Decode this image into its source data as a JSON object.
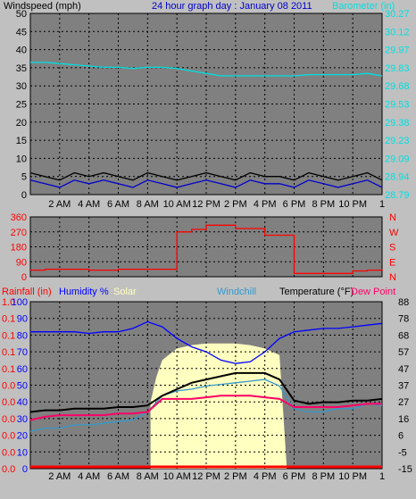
{
  "header": {
    "left_label": "Windspeed (mph)",
    "title": "24 hour graph day : January 08 2011",
    "right_label": "Barometer (in)"
  },
  "colors": {
    "background": "#c0c0c0",
    "plot_bg": "#808080",
    "grid": "#000000",
    "wind": "#0000cc",
    "gust": "#000000",
    "barometer": "#00e0e0",
    "direction": "#ff0000",
    "humidity": "#0000ff",
    "temperature": "#000000",
    "dewpoint": "#ff0066",
    "windchill": "#3399cc",
    "solar": "#ffffc0",
    "rain": "#ff0000",
    "left_axis_text": "#000000",
    "baro_axis_text": "#00e0e0",
    "dir_axis_text": "#ff0000",
    "rain_axis_text": "#ff0000",
    "hum_axis_text": "#0000ff"
  },
  "bottom_legend": {
    "rainfall": "Rainfall (in)",
    "humidity": "Humidity %",
    "solar": "Solar",
    "windchill": "Windchill",
    "temperature": "Temperature (°F)",
    "dewpoint": "Dew Point"
  },
  "chart_data": [
    {
      "type": "line",
      "name": "wind",
      "x_ticks": [
        "2 AM",
        "4 AM",
        "6 AM",
        "8 AM",
        "10 AM",
        "12 PM",
        "2 PM",
        "4 PM",
        "6 PM",
        "8 PM",
        "10 PM",
        "1"
      ],
      "x_tick_hours": [
        2,
        4,
        6,
        8,
        10,
        12,
        14,
        16,
        18,
        20,
        22,
        24
      ],
      "x_range_hours": [
        0,
        24
      ],
      "left_axis": {
        "label": "Windspeed (mph)",
        "ticks": [
          "50",
          "45",
          "40",
          "35",
          "30",
          "25",
          "20",
          "15",
          "10",
          "5",
          "0"
        ],
        "ylim": [
          0,
          50
        ]
      },
      "right_axis": {
        "label": "Barometer (in)",
        "ticks": [
          "30.27",
          "30.12",
          "29.97",
          "29.83",
          "29.68",
          "29.53",
          "29.38",
          "29.23",
          "29.09",
          "28.94",
          "28.79"
        ],
        "ylim": [
          28.79,
          30.27
        ]
      },
      "series": [
        {
          "key": "gust",
          "color": "#000000",
          "axis": "left",
          "x": [
            0,
            1,
            2,
            3,
            4,
            5,
            6,
            7,
            8,
            9,
            10,
            11,
            12,
            13,
            14,
            15,
            16,
            17,
            18,
            19,
            20,
            21,
            22,
            23,
            24
          ],
          "y": [
            6,
            5,
            4,
            6,
            5,
            6,
            5,
            4,
            6,
            5,
            4,
            5,
            6,
            5,
            4,
            6,
            5,
            5,
            4,
            6,
            5,
            4,
            5,
            6,
            4
          ]
        },
        {
          "key": "wind",
          "color": "#0000cc",
          "axis": "left",
          "x": [
            0,
            1,
            2,
            3,
            4,
            5,
            6,
            7,
            8,
            9,
            10,
            11,
            12,
            13,
            14,
            15,
            16,
            17,
            18,
            19,
            20,
            21,
            22,
            23,
            24
          ],
          "y": [
            4,
            3,
            2,
            4,
            3,
            4,
            3,
            2,
            4,
            3,
            2,
            3,
            4,
            3,
            2,
            4,
            3,
            3,
            2,
            4,
            3,
            2,
            3,
            4,
            2
          ]
        },
        {
          "key": "barometer",
          "color": "#00e0e0",
          "axis": "right",
          "x": [
            0,
            1,
            2,
            3,
            4,
            5,
            6,
            7,
            8,
            9,
            10,
            11,
            12,
            13,
            14,
            15,
            16,
            17,
            18,
            19,
            20,
            21,
            22,
            23,
            24
          ],
          "y": [
            29.87,
            29.87,
            29.86,
            29.85,
            29.84,
            29.83,
            29.83,
            29.82,
            29.83,
            29.83,
            29.82,
            29.8,
            29.78,
            29.76,
            29.76,
            29.76,
            29.76,
            29.76,
            29.76,
            29.77,
            29.77,
            29.77,
            29.77,
            29.78,
            29.76
          ]
        }
      ]
    },
    {
      "type": "line",
      "name": "direction",
      "left_axis": {
        "ticks": [
          "360",
          "270",
          "180",
          "90",
          "0"
        ],
        "ylim": [
          0,
          360
        ]
      },
      "right_axis": {
        "ticks": [
          "N",
          "W",
          "S",
          "E",
          "N"
        ]
      },
      "series": [
        {
          "key": "direction",
          "color": "#ff0000",
          "x": [
            0,
            1,
            2,
            3,
            4,
            5,
            6,
            7,
            8,
            9,
            10,
            11,
            12,
            13,
            14,
            15,
            16,
            17,
            18,
            19,
            20,
            21,
            22,
            23,
            24
          ],
          "y": [
            40,
            45,
            45,
            45,
            40,
            40,
            45,
            45,
            45,
            45,
            270,
            285,
            310,
            310,
            290,
            290,
            250,
            250,
            20,
            20,
            20,
            20,
            35,
            40,
            45
          ]
        }
      ]
    },
    {
      "type": "line",
      "name": "temperature",
      "left_axis": {
        "label": "Rainfall (in)",
        "ticks": [
          "1.0",
          "0.1",
          "0.1",
          "0.1",
          "0.1",
          "0.0",
          "0.0",
          "0.0",
          "0.0",
          "0.0",
          "0.0"
        ]
      },
      "left_axis2": {
        "label": "Humidity %",
        "ticks": [
          "100",
          "90",
          "80",
          "70",
          "60",
          "50",
          "40",
          "30",
          "20",
          "10",
          "0"
        ],
        "ylim": [
          0,
          100
        ]
      },
      "right_axis": {
        "label": "Temperature (°F)",
        "ticks": [
          "88",
          "78",
          "68",
          "57",
          "47",
          "37",
          "27",
          "16",
          "6",
          "-5",
          "-15"
        ],
        "ylim": [
          -15,
          88
        ]
      },
      "series": [
        {
          "key": "solar",
          "color": "#ffffc0",
          "axis": "left2",
          "x": [
            8.2,
            8.6,
            9,
            10,
            11,
            12,
            13,
            14,
            15,
            16,
            17,
            17.5
          ],
          "y": [
            40,
            55,
            65,
            72,
            74,
            75,
            75,
            75,
            74,
            72,
            68,
            0
          ]
        },
        {
          "key": "humidity",
          "color": "#0000ff",
          "axis": "left2",
          "x": [
            0,
            1,
            2,
            3,
            4,
            5,
            6,
            7,
            8,
            9,
            10,
            11,
            12,
            13,
            14,
            15,
            16,
            17,
            18,
            19,
            20,
            21,
            22,
            23,
            24
          ],
          "y": [
            82,
            82,
            82,
            82,
            81,
            82,
            82,
            84,
            88,
            85,
            78,
            73,
            70,
            65,
            63,
            64,
            70,
            78,
            82,
            83,
            84,
            84,
            85,
            86,
            87
          ]
        },
        {
          "key": "windchill",
          "color": "#3399cc",
          "axis": "right",
          "x": [
            0,
            1,
            2,
            3,
            4,
            5,
            6,
            7,
            8,
            9,
            10,
            11,
            12,
            13,
            14,
            15,
            16,
            17,
            18,
            19,
            20,
            21,
            22,
            23,
            24
          ],
          "y": [
            8,
            10,
            10,
            12,
            12,
            13,
            14,
            15,
            20,
            30,
            33,
            34,
            36,
            37,
            38,
            39,
            40,
            36,
            22,
            20,
            20,
            22,
            22,
            25,
            24
          ]
        },
        {
          "key": "dewpoint",
          "color": "#ff0066",
          "axis": "right",
          "x": [
            0,
            1,
            2,
            3,
            4,
            5,
            6,
            7,
            8,
            9,
            10,
            11,
            12,
            13,
            14,
            15,
            16,
            17,
            18,
            19,
            20,
            21,
            22,
            23,
            24
          ],
          "y": [
            15,
            17,
            18,
            18,
            18,
            18,
            19,
            19,
            20,
            28,
            28,
            28,
            29,
            30,
            30,
            30,
            29,
            28,
            23,
            23,
            23,
            23,
            24,
            25,
            25
          ]
        },
        {
          "key": "temperature",
          "color": "#000000",
          "axis": "right",
          "x": [
            0,
            1,
            2,
            3,
            4,
            5,
            6,
            7,
            8,
            9,
            10,
            11,
            12,
            13,
            14,
            15,
            16,
            17,
            18,
            19,
            20,
            21,
            22,
            23,
            24
          ],
          "y": [
            20,
            21,
            21,
            22,
            22,
            22,
            23,
            23,
            24,
            30,
            34,
            38,
            40,
            42,
            44,
            44,
            44,
            40,
            27,
            25,
            26,
            26,
            27,
            27,
            28
          ]
        },
        {
          "key": "rain",
          "color": "#ff0000",
          "axis": "left",
          "x": [
            0,
            24
          ],
          "y": [
            0,
            0
          ]
        }
      ]
    }
  ]
}
